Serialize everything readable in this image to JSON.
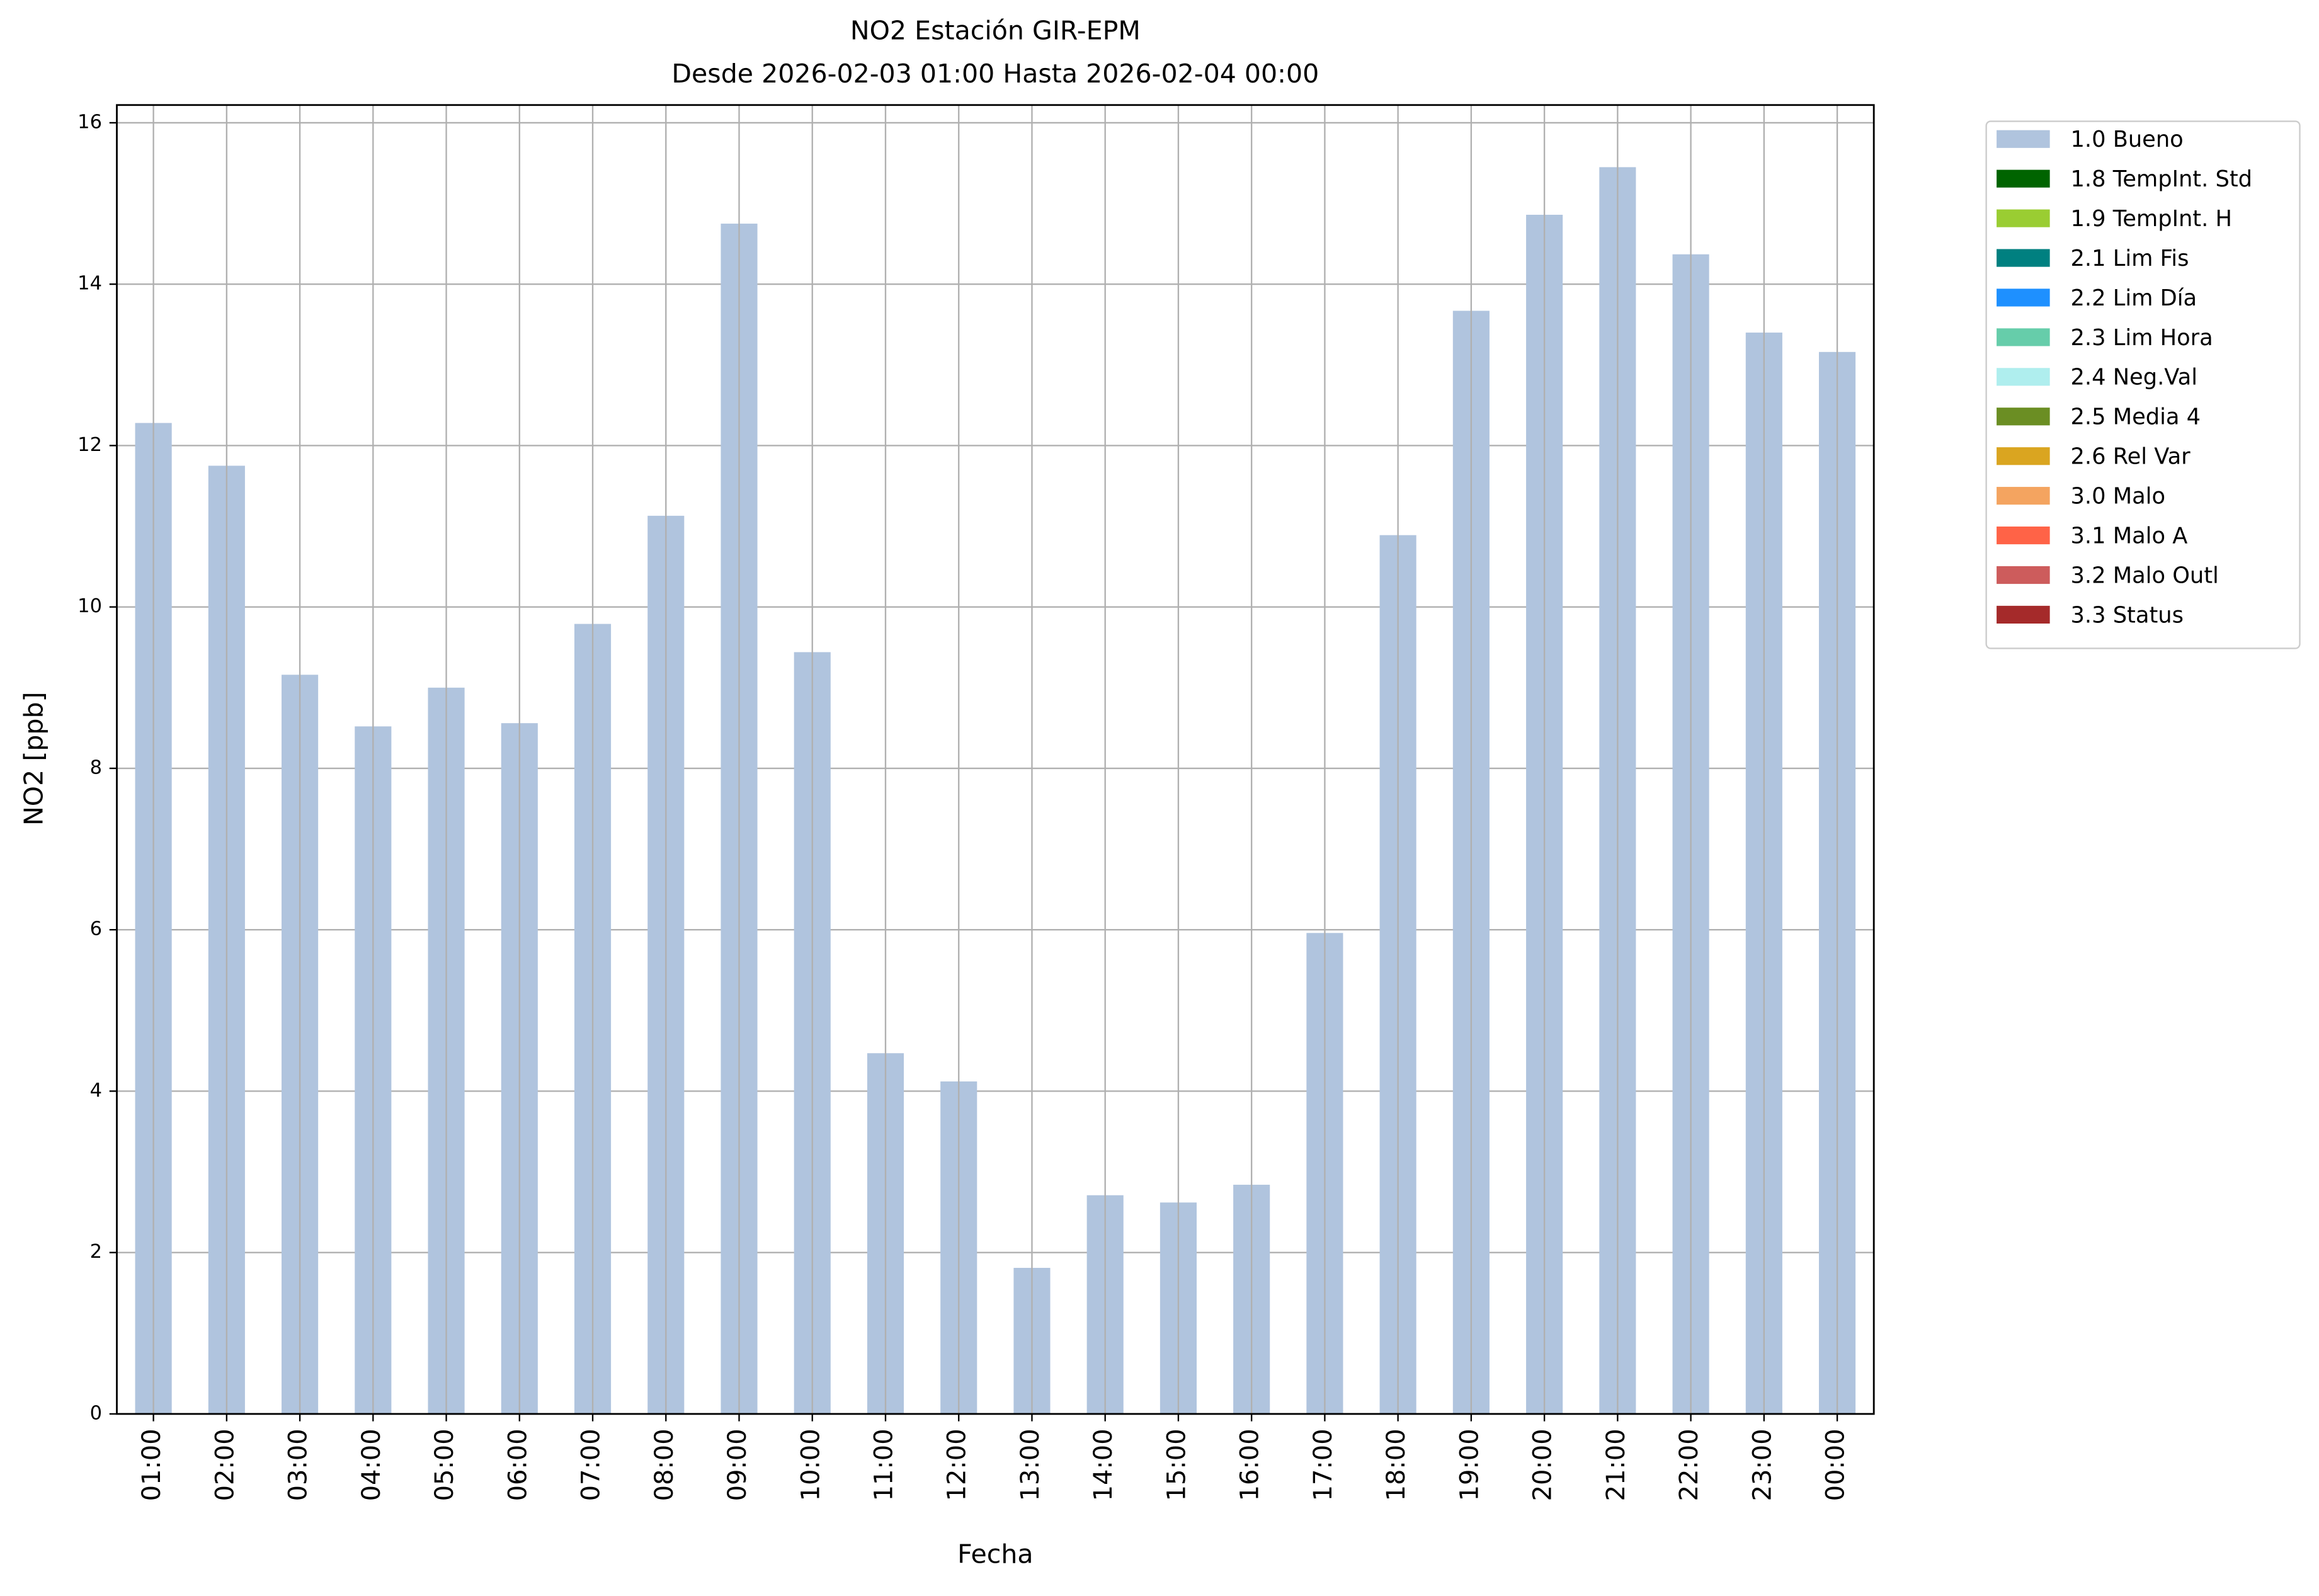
{
  "chart_data": {
    "type": "bar",
    "title": "NO2 Estación GIR-EPM",
    "subtitle": "Desde 2026-02-03 01:00 Hasta 2026-02-04 00:00",
    "x_label": "Fecha",
    "y_label": "NO2 [ppb]",
    "categories": [
      "01:00",
      "02:00",
      "03:00",
      "04:00",
      "05:00",
      "06:00",
      "07:00",
      "08:00",
      "09:00",
      "10:00",
      "11:00",
      "12:00",
      "13:00",
      "14:00",
      "15:00",
      "16:00",
      "17:00",
      "18:00",
      "19:00",
      "20:00",
      "21:00",
      "22:00",
      "23:00",
      "00:00"
    ],
    "series": [
      {
        "name": "1.0 Bueno",
        "color": "#b0c4de",
        "values": [
          12.28,
          11.75,
          9.16,
          8.52,
          9.0,
          8.56,
          9.79,
          11.13,
          14.75,
          9.44,
          4.47,
          4.12,
          1.81,
          2.71,
          2.62,
          2.84,
          5.96,
          10.89,
          13.67,
          14.86,
          15.45,
          14.37,
          13.4,
          13.16
        ]
      },
      {
        "name": "1.8 TempInt. Std",
        "color": "#006400",
        "values": [
          null,
          null,
          null,
          null,
          null,
          null,
          null,
          null,
          null,
          null,
          null,
          null,
          null,
          null,
          null,
          null,
          null,
          null,
          null,
          null,
          null,
          null,
          null,
          null
        ]
      },
      {
        "name": "1.9 TempInt. H",
        "color": "#9acd32",
        "values": [
          null,
          null,
          null,
          null,
          null,
          null,
          null,
          null,
          null,
          null,
          null,
          null,
          null,
          null,
          null,
          null,
          null,
          null,
          null,
          null,
          null,
          null,
          null,
          null
        ]
      },
      {
        "name": "2.1 Lim Fis",
        "color": "#008080",
        "values": [
          null,
          null,
          null,
          null,
          null,
          null,
          null,
          null,
          null,
          null,
          null,
          null,
          null,
          null,
          null,
          null,
          null,
          null,
          null,
          null,
          null,
          null,
          null,
          null
        ]
      },
      {
        "name": "2.2 Lim Día",
        "color": "#1e90ff",
        "values": [
          null,
          null,
          null,
          null,
          null,
          null,
          null,
          null,
          null,
          null,
          null,
          null,
          null,
          null,
          null,
          null,
          null,
          null,
          null,
          null,
          null,
          null,
          null,
          null
        ]
      },
      {
        "name": "2.3 Lim Hora",
        "color": "#66cdaa",
        "values": [
          null,
          null,
          null,
          null,
          null,
          null,
          null,
          null,
          null,
          null,
          null,
          null,
          null,
          null,
          null,
          null,
          null,
          null,
          null,
          null,
          null,
          null,
          null,
          null
        ]
      },
      {
        "name": "2.4 Neg.Val",
        "color": "#afeeee",
        "values": [
          null,
          null,
          null,
          null,
          null,
          null,
          null,
          null,
          null,
          null,
          null,
          null,
          null,
          null,
          null,
          null,
          null,
          null,
          null,
          null,
          null,
          null,
          null,
          null
        ]
      },
      {
        "name": "2.5 Media 4",
        "color": "#6b8e23",
        "values": [
          null,
          null,
          null,
          null,
          null,
          null,
          null,
          null,
          null,
          null,
          null,
          null,
          null,
          null,
          null,
          null,
          null,
          null,
          null,
          null,
          null,
          null,
          null,
          null
        ]
      },
      {
        "name": "2.6 Rel Var",
        "color": "#daa520",
        "values": [
          null,
          null,
          null,
          null,
          null,
          null,
          null,
          null,
          null,
          null,
          null,
          null,
          null,
          null,
          null,
          null,
          null,
          null,
          null,
          null,
          null,
          null,
          null,
          null
        ]
      },
      {
        "name": "3.0 Malo",
        "color": "#f4a460",
        "values": [
          null,
          null,
          null,
          null,
          null,
          null,
          null,
          null,
          null,
          null,
          null,
          null,
          null,
          null,
          null,
          null,
          null,
          null,
          null,
          null,
          null,
          null,
          null,
          null
        ]
      },
      {
        "name": "3.1 Malo A",
        "color": "#ff6347",
        "values": [
          null,
          null,
          null,
          null,
          null,
          null,
          null,
          null,
          null,
          null,
          null,
          null,
          null,
          null,
          null,
          null,
          null,
          null,
          null,
          null,
          null,
          null,
          null,
          null
        ]
      },
      {
        "name": "3.2 Malo Outl",
        "color": "#cd5c5c",
        "values": [
          null,
          null,
          null,
          null,
          null,
          null,
          null,
          null,
          null,
          null,
          null,
          null,
          null,
          null,
          null,
          null,
          null,
          null,
          null,
          null,
          null,
          null,
          null,
          null
        ]
      },
      {
        "name": "3.3 Status",
        "color": "#a52a2a",
        "values": [
          null,
          null,
          null,
          null,
          null,
          null,
          null,
          null,
          null,
          null,
          null,
          null,
          null,
          null,
          null,
          null,
          null,
          null,
          null,
          null,
          null,
          null,
          null,
          null
        ]
      }
    ],
    "stacked": true,
    "ylim": [
      0,
      16.22
    ],
    "yticks": [
      0,
      2,
      4,
      6,
      8,
      10,
      12,
      14,
      16
    ],
    "grid": true,
    "legend": "outside upper right"
  }
}
